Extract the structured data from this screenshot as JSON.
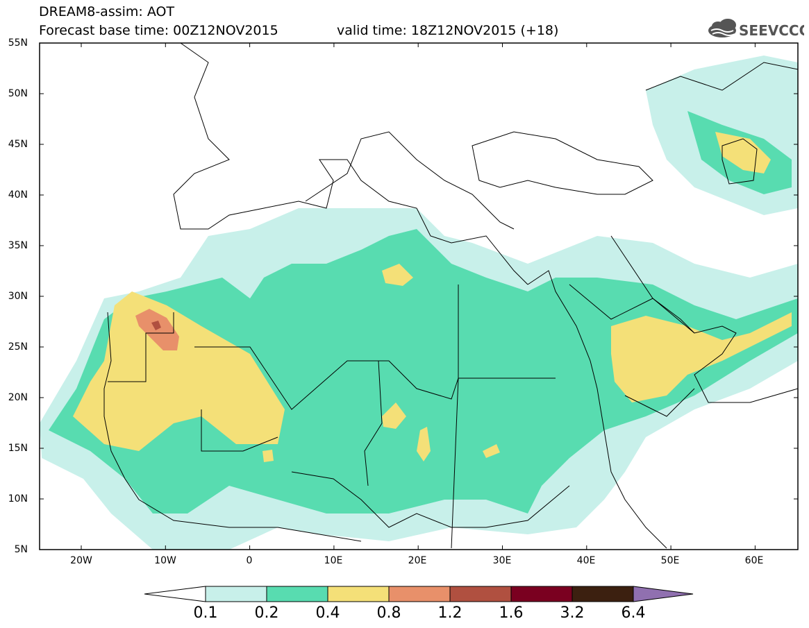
{
  "header": {
    "title": "DREAM8-assim: AOT",
    "base_time": "Forecast base time: 00Z12NOV2015",
    "valid_time": "valid time: 18Z12NOV2015 (+18)"
  },
  "logo": {
    "text": "SEEVCCC",
    "icon": "cloud-icon"
  },
  "map": {
    "lat_labels": [
      "55N",
      "50N",
      "45N",
      "40N",
      "35N",
      "30N",
      "25N",
      "20N",
      "15N",
      "10N",
      "5N"
    ],
    "lon_labels": [
      "20W",
      "10W",
      "0",
      "10E",
      "20E",
      "30E",
      "40E",
      "50E",
      "60E"
    ],
    "lat_range": [
      5,
      55
    ],
    "lon_range": [
      -25,
      65
    ]
  },
  "colorbar": {
    "levels": [
      "0.1",
      "0.2",
      "0.4",
      "0.8",
      "1.2",
      "1.6",
      "3.2",
      "6.4"
    ],
    "colors": [
      "#c8f0ea",
      "#58dcb0",
      "#f4e078",
      "#e8906a",
      "#b05040",
      "#7a0020",
      "#3c2010",
      "#9070b0"
    ]
  }
}
